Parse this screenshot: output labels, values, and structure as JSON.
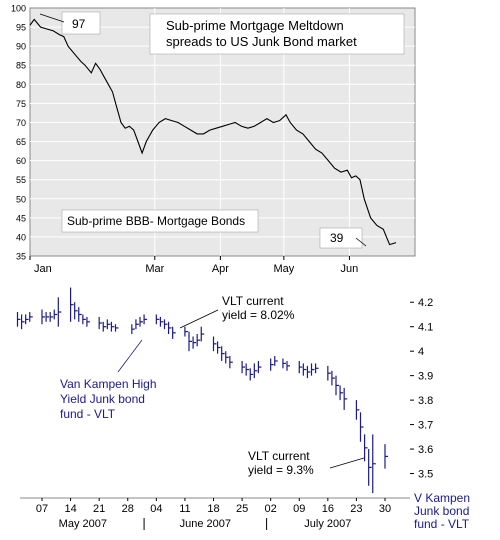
{
  "chart_data": [
    {
      "type": "line",
      "title": "Sub-prime Mortgage Meltdown spreads to US Junk Bond market",
      "series_label": "Sub-prime BBB- Mortgage Bonds",
      "xlabel": "",
      "ylabel": "",
      "x_ticks": [
        "Jan",
        "Mar",
        "Apr",
        "May",
        "Jun"
      ],
      "y_ticks": [
        35,
        40,
        45,
        50,
        55,
        60,
        65,
        70,
        75,
        80,
        85,
        90,
        95,
        100
      ],
      "ylim": [
        35,
        100
      ],
      "grid": true,
      "background": "#e8e8e8",
      "line_color": "#000000",
      "annotations": [
        {
          "text": "97",
          "x": "2007-01-08",
          "y": 97
        },
        {
          "text": "39",
          "x": "2007-06-09",
          "y": 37.5
        }
      ],
      "series": [
        {
          "points": [
            [
              "2007-01-01",
              95.5
            ],
            [
              "2007-01-03",
              97
            ],
            [
              "2007-01-06",
              95
            ],
            [
              "2007-01-09",
              94.5
            ],
            [
              "2007-01-12",
              94
            ],
            [
              "2007-01-15",
              93
            ],
            [
              "2007-01-17",
              92.5
            ],
            [
              "2007-01-19",
              90
            ],
            [
              "2007-01-22",
              88
            ],
            [
              "2007-01-25",
              86
            ],
            [
              "2007-01-27",
              85
            ],
            [
              "2007-01-30",
              83
            ],
            [
              "2007-02-01",
              85.5
            ],
            [
              "2007-02-03",
              84
            ],
            [
              "2007-02-05",
              82
            ],
            [
              "2007-02-07",
              80
            ],
            [
              "2007-02-09",
              78
            ],
            [
              "2007-02-11",
              74
            ],
            [
              "2007-02-13",
              70
            ],
            [
              "2007-02-15",
              68.5
            ],
            [
              "2007-02-17",
              69
            ],
            [
              "2007-02-19",
              68
            ],
            [
              "2007-02-21",
              65
            ],
            [
              "2007-02-23",
              62
            ],
            [
              "2007-02-25",
              65
            ],
            [
              "2007-02-28",
              68
            ],
            [
              "2007-03-03",
              70
            ],
            [
              "2007-03-06",
              71
            ],
            [
              "2007-03-09",
              70.5
            ],
            [
              "2007-03-12",
              70
            ],
            [
              "2007-03-15",
              69
            ],
            [
              "2007-03-18",
              68
            ],
            [
              "2007-03-21",
              67
            ],
            [
              "2007-03-24",
              67
            ],
            [
              "2007-03-27",
              68
            ],
            [
              "2007-03-30",
              68.5
            ],
            [
              "2007-04-02",
              69
            ],
            [
              "2007-04-05",
              69.5
            ],
            [
              "2007-04-08",
              70
            ],
            [
              "2007-04-11",
              69
            ],
            [
              "2007-04-14",
              68.5
            ],
            [
              "2007-04-17",
              69
            ],
            [
              "2007-04-20",
              70
            ],
            [
              "2007-04-23",
              71
            ],
            [
              "2007-04-26",
              70
            ],
            [
              "2007-04-29",
              70.5
            ],
            [
              "2007-05-02",
              72
            ],
            [
              "2007-05-04",
              70
            ],
            [
              "2007-05-07",
              68
            ],
            [
              "2007-05-10",
              67
            ],
            [
              "2007-05-13",
              65
            ],
            [
              "2007-05-16",
              63
            ],
            [
              "2007-05-19",
              62
            ],
            [
              "2007-05-22",
              60
            ],
            [
              "2007-05-25",
              58
            ],
            [
              "2007-05-28",
              57
            ],
            [
              "2007-05-31",
              57.5
            ],
            [
              "2007-06-02",
              55.5
            ],
            [
              "2007-06-04",
              56
            ],
            [
              "2007-06-06",
              55
            ],
            [
              "2007-06-08",
              50
            ],
            [
              "2007-06-11",
              45
            ],
            [
              "2007-06-14",
              43
            ],
            [
              "2007-06-17",
              42
            ],
            [
              "2007-06-20",
              38
            ],
            [
              "2007-06-23",
              38.5
            ]
          ]
        }
      ]
    },
    {
      "type": "line",
      "title": "",
      "series_label": "Van Kampen High Yield Junk bond fund - VLT",
      "series_label_lines": [
        "Van Kampen High",
        "Yield Junk bond",
        "fund - VLT"
      ],
      "xlabel": "",
      "ylabel": "",
      "x_ticks": [
        "07",
        "14",
        "21",
        "28",
        "04",
        "11",
        "18",
        "25",
        "02",
        "09",
        "16",
        "23",
        "30"
      ],
      "month_labels": [
        "May 2007",
        "June 2007",
        "July 2007"
      ],
      "y_ticks": [
        3.5,
        3.6,
        3.7,
        3.8,
        3.9,
        4,
        4.1,
        4.2
      ],
      "ylim": [
        3.4,
        4.25
      ],
      "grid": false,
      "right_axis_label_lines": [
        "V Kampen",
        "Junk bond",
        "fund - VLT"
      ],
      "label_color": "#1a1a8c",
      "bar_color": "#1a1a8c",
      "annotations": [
        {
          "text_lines": [
            "VLT current",
            "yield = 8.02%"
          ],
          "x": "2007-06-11",
          "y": 4.12
        },
        {
          "text_lines": [
            "VLT current",
            "yield = 9.3%"
          ],
          "x": "2007-07-27",
          "y": 3.57
        }
      ],
      "bars": [
        {
          "d": "2007-05-01",
          "h": 4.16,
          "l": 4.1
        },
        {
          "d": "2007-05-02",
          "h": 4.15,
          "l": 4.09
        },
        {
          "d": "2007-05-03",
          "h": 4.15,
          "l": 4.11
        },
        {
          "d": "2007-05-04",
          "h": 4.16,
          "l": 4.12
        },
        {
          "d": "2007-05-07",
          "h": 4.17,
          "l": 4.11
        },
        {
          "d": "2007-05-08",
          "h": 4.16,
          "l": 4.12
        },
        {
          "d": "2007-05-09",
          "h": 4.16,
          "l": 4.12
        },
        {
          "d": "2007-05-10",
          "h": 4.17,
          "l": 4.13
        },
        {
          "d": "2007-05-11",
          "h": 4.22,
          "l": 4.1
        },
        {
          "d": "2007-05-14",
          "h": 4.26,
          "l": 4.12
        },
        {
          "d": "2007-05-15",
          "h": 4.2,
          "l": 4.13
        },
        {
          "d": "2007-05-16",
          "h": 4.18,
          "l": 4.12
        },
        {
          "d": "2007-05-17",
          "h": 4.15,
          "l": 4.11
        },
        {
          "d": "2007-05-18",
          "h": 4.14,
          "l": 4.1
        },
        {
          "d": "2007-05-21",
          "h": 4.14,
          "l": 4.09
        },
        {
          "d": "2007-05-22",
          "h": 4.12,
          "l": 4.08
        },
        {
          "d": "2007-05-23",
          "h": 4.13,
          "l": 4.09
        },
        {
          "d": "2007-05-24",
          "h": 4.12,
          "l": 4.08
        },
        {
          "d": "2007-05-25",
          "h": 4.11,
          "l": 4.08
        },
        {
          "d": "2007-05-29",
          "h": 4.11,
          "l": 4.07
        },
        {
          "d": "2007-05-30",
          "h": 4.13,
          "l": 4.09
        },
        {
          "d": "2007-05-31",
          "h": 4.14,
          "l": 4.1
        },
        {
          "d": "2007-06-01",
          "h": 4.15,
          "l": 4.11
        },
        {
          "d": "2007-06-04",
          "h": 4.15,
          "l": 4.11
        },
        {
          "d": "2007-06-05",
          "h": 4.14,
          "l": 4.1
        },
        {
          "d": "2007-06-06",
          "h": 4.13,
          "l": 4.09
        },
        {
          "d": "2007-06-07",
          "h": 4.12,
          "l": 4.07
        },
        {
          "d": "2007-06-08",
          "h": 4.1,
          "l": 4.05
        },
        {
          "d": "2007-06-11",
          "h": 4.1,
          "l": 4.06
        },
        {
          "d": "2007-06-12",
          "h": 4.08,
          "l": 4.0
        },
        {
          "d": "2007-06-13",
          "h": 4.06,
          "l": 4.01
        },
        {
          "d": "2007-06-14",
          "h": 4.07,
          "l": 4.02
        },
        {
          "d": "2007-06-15",
          "h": 4.1,
          "l": 4.04
        },
        {
          "d": "2007-06-18",
          "h": 4.06,
          "l": 4.0
        },
        {
          "d": "2007-06-19",
          "h": 4.04,
          "l": 3.99
        },
        {
          "d": "2007-06-20",
          "h": 4.02,
          "l": 3.96
        },
        {
          "d": "2007-06-21",
          "h": 4.0,
          "l": 3.95
        },
        {
          "d": "2007-06-22",
          "h": 3.98,
          "l": 3.93
        },
        {
          "d": "2007-06-25",
          "h": 3.96,
          "l": 3.91
        },
        {
          "d": "2007-06-26",
          "h": 3.95,
          "l": 3.9
        },
        {
          "d": "2007-06-27",
          "h": 3.93,
          "l": 3.88
        },
        {
          "d": "2007-06-28",
          "h": 3.95,
          "l": 3.89
        },
        {
          "d": "2007-06-29",
          "h": 3.96,
          "l": 3.91
        },
        {
          "d": "2007-07-02",
          "h": 3.97,
          "l": 3.92
        },
        {
          "d": "2007-07-03",
          "h": 3.98,
          "l": 3.94
        },
        {
          "d": "2007-07-05",
          "h": 3.97,
          "l": 3.93
        },
        {
          "d": "2007-07-06",
          "h": 3.96,
          "l": 3.92
        },
        {
          "d": "2007-07-09",
          "h": 3.96,
          "l": 3.91
        },
        {
          "d": "2007-07-10",
          "h": 3.95,
          "l": 3.9
        },
        {
          "d": "2007-07-11",
          "h": 3.94,
          "l": 3.89
        },
        {
          "d": "2007-07-12",
          "h": 3.95,
          "l": 3.9
        },
        {
          "d": "2007-07-13",
          "h": 3.95,
          "l": 3.91
        },
        {
          "d": "2007-07-16",
          "h": 3.94,
          "l": 3.88
        },
        {
          "d": "2007-07-17",
          "h": 3.92,
          "l": 3.86
        },
        {
          "d": "2007-07-18",
          "h": 3.9,
          "l": 3.82
        },
        {
          "d": "2007-07-19",
          "h": 3.86,
          "l": 3.8
        },
        {
          "d": "2007-07-20",
          "h": 3.85,
          "l": 3.76
        },
        {
          "d": "2007-07-23",
          "h": 3.8,
          "l": 3.72
        },
        {
          "d": "2007-07-24",
          "h": 3.75,
          "l": 3.63
        },
        {
          "d": "2007-07-25",
          "h": 3.66,
          "l": 3.55
        },
        {
          "d": "2007-07-26",
          "h": 3.6,
          "l": 3.45
        },
        {
          "d": "2007-07-27",
          "h": 3.66,
          "l": 3.42
        },
        {
          "d": "2007-07-30",
          "h": 3.62,
          "l": 3.52
        }
      ]
    }
  ]
}
